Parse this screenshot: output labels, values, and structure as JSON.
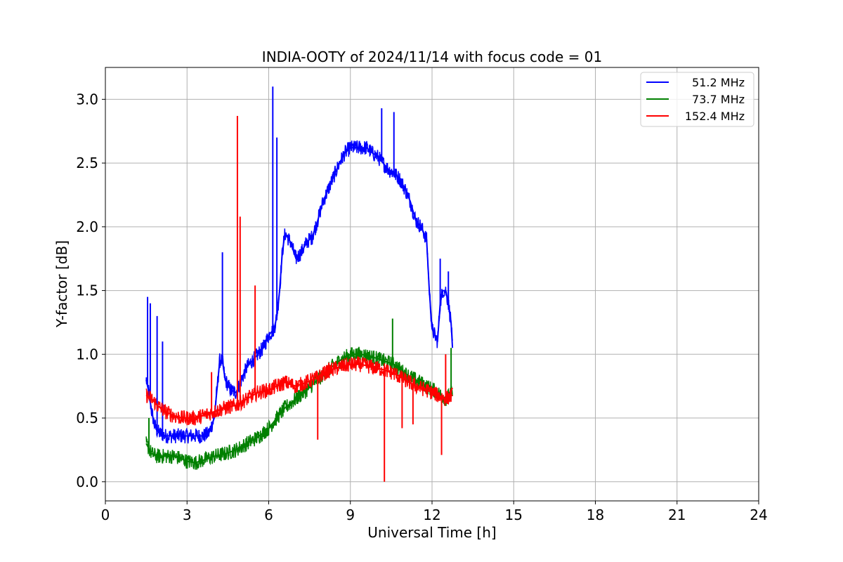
{
  "chart_data": {
    "type": "line",
    "title": "INDIA-OOTY of 2024/11/14 with focus code = 01",
    "xlabel": "Universal Time [h]",
    "ylabel": "Y-factor [dB]",
    "xlim": [
      0,
      24
    ],
    "ylim": [
      -0.15,
      3.25
    ],
    "xticks": [
      0,
      3,
      6,
      9,
      12,
      15,
      18,
      21,
      24
    ],
    "yticks": [
      0.0,
      0.5,
      1.0,
      1.5,
      2.0,
      2.5,
      3.0
    ],
    "xtick_labels": [
      "0",
      "3",
      "6",
      "9",
      "12",
      "15",
      "18",
      "21",
      "24"
    ],
    "ytick_labels": [
      "0.0",
      "0.5",
      "1.0",
      "1.5",
      "2.0",
      "2.5",
      "3.0"
    ],
    "grid": true,
    "legend_position": "top-right",
    "series": [
      {
        "name": "51.2 MHz",
        "color": "#0000ff",
        "x": [
          1.5,
          1.6,
          1.7,
          1.8,
          1.9,
          2.0,
          2.2,
          2.4,
          2.6,
          2.8,
          3.0,
          3.2,
          3.4,
          3.6,
          3.8,
          4.0,
          4.2,
          4.3,
          4.4,
          4.6,
          4.8,
          5.0,
          5.2,
          5.4,
          5.6,
          5.8,
          6.0,
          6.2,
          6.3,
          6.4,
          6.5,
          6.6,
          6.8,
          7.0,
          7.2,
          7.4,
          7.6,
          7.8,
          8.0,
          8.2,
          8.4,
          8.6,
          8.8,
          9.0,
          9.2,
          9.4,
          9.6,
          9.8,
          10.0,
          10.2,
          10.4,
          10.6,
          10.8,
          11.0,
          11.2,
          11.4,
          11.6,
          11.8,
          11.9,
          12.0,
          12.1,
          12.2,
          12.3,
          12.4,
          12.5,
          12.6,
          12.7,
          12.75
        ],
        "values": [
          0.8,
          0.7,
          0.55,
          0.45,
          0.4,
          0.38,
          0.36,
          0.36,
          0.36,
          0.36,
          0.36,
          0.36,
          0.36,
          0.36,
          0.38,
          0.5,
          0.95,
          0.95,
          0.8,
          0.72,
          0.7,
          0.8,
          0.9,
          0.95,
          1.0,
          1.05,
          1.15,
          1.2,
          1.3,
          1.5,
          1.8,
          1.95,
          1.88,
          1.75,
          1.8,
          1.88,
          1.92,
          2.05,
          2.2,
          2.3,
          2.4,
          2.5,
          2.58,
          2.62,
          2.62,
          2.62,
          2.62,
          2.58,
          2.55,
          2.5,
          2.45,
          2.42,
          2.38,
          2.3,
          2.2,
          2.05,
          2.0,
          1.9,
          1.5,
          1.2,
          1.15,
          1.1,
          1.4,
          1.5,
          1.5,
          1.4,
          1.25,
          1.05
        ],
        "spikes": [
          [
            1.55,
            1.45
          ],
          [
            1.65,
            1.4
          ],
          [
            1.9,
            1.3
          ],
          [
            2.1,
            1.1
          ],
          [
            4.3,
            1.8
          ],
          [
            6.15,
            3.1
          ],
          [
            6.3,
            2.7
          ],
          [
            10.15,
            2.93
          ],
          [
            10.6,
            2.9
          ],
          [
            12.3,
            1.75
          ],
          [
            12.6,
            1.65
          ]
        ]
      },
      {
        "name": "73.7 MHz",
        "color": "#008000",
        "x": [
          1.5,
          1.7,
          1.9,
          2.2,
          2.5,
          2.8,
          3.0,
          3.3,
          3.6,
          4.0,
          4.4,
          4.8,
          5.2,
          5.6,
          6.0,
          6.3,
          6.6,
          7.0,
          7.4,
          7.8,
          8.2,
          8.6,
          9.0,
          9.4,
          9.8,
          10.2,
          10.6,
          11.0,
          11.4,
          11.8,
          12.2,
          12.5,
          12.75
        ],
        "values": [
          0.3,
          0.22,
          0.2,
          0.2,
          0.2,
          0.18,
          0.16,
          0.15,
          0.17,
          0.2,
          0.22,
          0.25,
          0.3,
          0.35,
          0.42,
          0.5,
          0.58,
          0.65,
          0.72,
          0.8,
          0.88,
          0.95,
          1.0,
          1.0,
          0.98,
          0.95,
          0.92,
          0.85,
          0.8,
          0.75,
          0.7,
          0.65,
          0.7
        ],
        "spikes": [
          [
            1.6,
            0.5
          ],
          [
            10.55,
            1.28
          ],
          [
            12.7,
            1.05
          ]
        ]
      },
      {
        "name": "152.4 MHz",
        "color": "#ff0000",
        "x": [
          1.5,
          1.7,
          1.9,
          2.2,
          2.5,
          2.8,
          3.0,
          3.3,
          3.6,
          4.0,
          4.4,
          4.8,
          5.2,
          5.6,
          6.0,
          6.3,
          6.6,
          7.0,
          7.4,
          7.8,
          8.2,
          8.6,
          9.0,
          9.4,
          9.8,
          10.2,
          10.6,
          11.0,
          11.4,
          11.8,
          12.2,
          12.5,
          12.75
        ],
        "values": [
          0.68,
          0.65,
          0.6,
          0.55,
          0.52,
          0.5,
          0.5,
          0.5,
          0.52,
          0.55,
          0.58,
          0.6,
          0.65,
          0.7,
          0.72,
          0.75,
          0.78,
          0.75,
          0.78,
          0.82,
          0.87,
          0.9,
          0.92,
          0.92,
          0.9,
          0.88,
          0.85,
          0.8,
          0.75,
          0.72,
          0.68,
          0.65,
          0.68
        ],
        "spikes": [
          [
            3.9,
            0.86
          ],
          [
            4.85,
            2.87
          ],
          [
            4.95,
            2.08
          ],
          [
            5.5,
            1.54
          ],
          [
            7.8,
            0.33
          ],
          [
            10.25,
            0.0
          ],
          [
            10.9,
            0.42
          ],
          [
            11.3,
            0.45
          ],
          [
            12.35,
            0.21
          ],
          [
            12.5,
            1.0
          ]
        ]
      }
    ]
  }
}
